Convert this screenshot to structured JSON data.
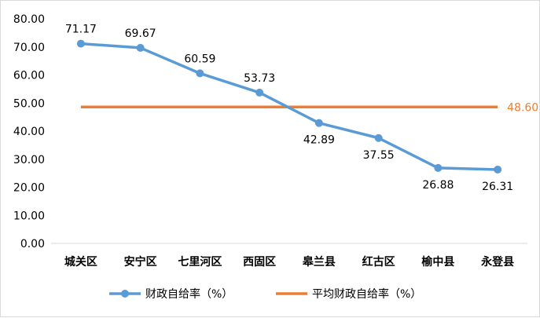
{
  "chart_data": {
    "type": "line",
    "categories": [
      "城关区",
      "安宁区",
      "七里河区",
      "西固区",
      "皋兰县",
      "红古区",
      "榆中县",
      "永登县"
    ],
    "series": [
      {
        "name": "财政自给率（%）",
        "values": [
          71.17,
          69.67,
          60.59,
          53.73,
          42.89,
          37.55,
          26.88,
          26.31
        ],
        "color": "#5b9bd5",
        "data_labels": [
          "71.17",
          "69.67",
          "60.59",
          "53.73",
          "42.89",
          "37.55",
          "26.88",
          "26.31"
        ]
      },
      {
        "name": "平均财政自给率（%）",
        "values": [
          48.6,
          48.6,
          48.6,
          48.6,
          48.6,
          48.6,
          48.6,
          48.6
        ],
        "color": "#ed7d31",
        "label": "48.60"
      }
    ],
    "y_ticks": [
      "0.00",
      "10.00",
      "20.00",
      "30.00",
      "40.00",
      "50.00",
      "60.00",
      "70.00",
      "80.00"
    ],
    "ylim": [
      0,
      80
    ],
    "title": "",
    "xlabel": "",
    "ylabel": "",
    "grid": false,
    "legend_position": "bottom"
  }
}
